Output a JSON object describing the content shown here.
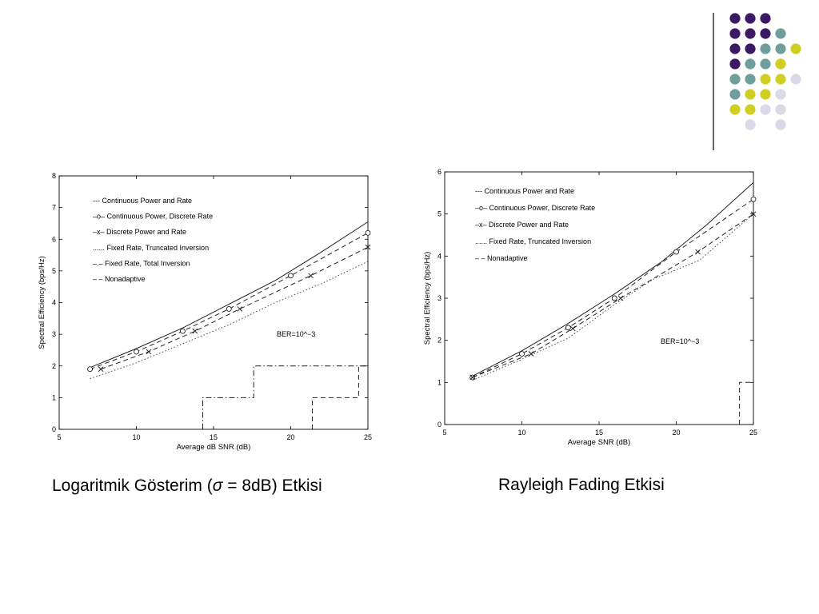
{
  "theme": {
    "dot_colors": {
      "purple": "#3b1a63",
      "teal": "#6f9e9c",
      "olive": "#cfce21",
      "lavender": "#d9d9e8"
    },
    "divider_color": "#333333",
    "dot_grid": [
      [
        "purple",
        "purple",
        "purple",
        ""
      ],
      [
        "purple",
        "purple",
        "purple",
        "teal"
      ],
      [
        "purple",
        "purple",
        "teal",
        "teal",
        "olive"
      ],
      [
        "purple",
        "teal",
        "teal",
        "olive"
      ],
      [
        "teal",
        "teal",
        "olive",
        "olive",
        "lavender"
      ],
      [
        "teal",
        "olive",
        "olive",
        "lavender"
      ],
      [
        "olive",
        "olive",
        "lavender",
        "lavender"
      ],
      [
        "",
        "lavender",
        "",
        "lavender"
      ]
    ]
  },
  "captions": {
    "left_prefix": "Logaritmik Gösterim (",
    "left_sigma": "σ",
    "left_suffix": " = 8dB) Etkisi",
    "right": "Rayleigh Fading Etkisi"
  },
  "chart_data": [
    {
      "type": "line",
      "xlabel": "Average dB SNR (dB)",
      "ylabel": "Spectral Efficiency (bps/Hz)",
      "xlim": [
        5,
        25
      ],
      "ylim": [
        0,
        8
      ],
      "xticks": [
        5,
        10,
        15,
        20,
        25
      ],
      "yticks": [
        0,
        1,
        2,
        3,
        4,
        5,
        6,
        7,
        8
      ],
      "grid": false,
      "legend_position": "top-left",
      "annotation": "BER=10^−3",
      "legend": [
        {
          "label": "Continuous Power and Rate",
          "symbol": "---"
        },
        {
          "label": "Continuous Power, Discrete Rate",
          "symbol": "–o–"
        },
        {
          "label": "Discrete Power and Rate",
          "symbol": "–x–"
        },
        {
          "label": "Fixed Rate, Truncated Inversion",
          "symbol": "......"
        },
        {
          "label": "Fixed Rate, Total Inversion",
          "symbol": "–.–"
        },
        {
          "label": "Nonadaptive",
          "symbol": "– –"
        }
      ],
      "series": [
        {
          "name": "Continuous Power and Rate",
          "style": "solid",
          "marker": "none",
          "x": [
            7,
            10,
            13,
            16,
            19,
            22,
            25
          ],
          "y": [
            1.95,
            2.55,
            3.2,
            3.95,
            4.7,
            5.6,
            6.55
          ]
        },
        {
          "name": "Continuous Power, Discrete Rate",
          "style": "dashed",
          "marker": "circle",
          "x": [
            7,
            10,
            13,
            16,
            20,
            25
          ],
          "y": [
            1.9,
            2.45,
            3.1,
            3.8,
            4.85,
            6.2
          ]
        },
        {
          "name": "Discrete Power and Rate",
          "style": "dashed",
          "marker": "x",
          "x": [
            7.7,
            10.8,
            13.8,
            16.7,
            21.3,
            25
          ],
          "y": [
            1.9,
            2.45,
            3.1,
            3.8,
            4.85,
            5.75
          ]
        },
        {
          "name": "Fixed Rate, Truncated Inversion",
          "style": "dotted",
          "marker": "none",
          "x": [
            7,
            10,
            13,
            16,
            19,
            22,
            25
          ],
          "y": [
            1.6,
            2.1,
            2.7,
            3.3,
            4.0,
            4.6,
            5.3
          ]
        },
        {
          "name": "Fixed Rate, Total Inversion",
          "style": "dashdot",
          "marker": "none",
          "x": [
            14.3,
            14.3,
            17.6,
            17.6,
            25
          ],
          "y": [
            0,
            1,
            1,
            2,
            2
          ]
        },
        {
          "name": "Nonadaptive",
          "style": "dashed",
          "marker": "none",
          "x": [
            21.4,
            21.4,
            24.4,
            24.4,
            25
          ],
          "y": [
            0,
            1,
            1,
            2,
            2
          ]
        }
      ]
    },
    {
      "type": "line",
      "xlabel": "Average SNR (dB)",
      "ylabel": "Spectral Efficiency (bps/Hz)",
      "xlim": [
        5,
        25
      ],
      "ylim": [
        0,
        6
      ],
      "xticks": [
        5,
        10,
        15,
        20,
        25
      ],
      "yticks": [
        0,
        1,
        2,
        3,
        4,
        5,
        6
      ],
      "grid": false,
      "legend_position": "top-left",
      "annotation": "BER=10^−3",
      "legend": [
        {
          "label": "Continuous Power and Rate",
          "symbol": "---"
        },
        {
          "label": "Continuous Power, Discrete Rate",
          "symbol": "–o–"
        },
        {
          "label": "Discrete Power and Rate",
          "symbol": "–x–"
        },
        {
          "label": "Fixed Rate, Truncated Inversion",
          "symbol": "......"
        },
        {
          "label": "Nonadaptive",
          "symbol": "– –"
        }
      ],
      "series": [
        {
          "name": "Continuous Power and Rate",
          "style": "solid",
          "marker": "none",
          "x": [
            6.8,
            10,
            13,
            16,
            19,
            22,
            25
          ],
          "y": [
            1.15,
            1.75,
            2.4,
            3.1,
            3.85,
            4.75,
            5.75
          ]
        },
        {
          "name": "Continuous Power, Discrete Rate",
          "style": "dashed",
          "marker": "circle",
          "x": [
            6.8,
            10,
            13,
            16,
            20,
            25
          ],
          "y": [
            1.12,
            1.68,
            2.3,
            3.0,
            4.1,
            5.35
          ]
        },
        {
          "name": "Discrete Power and Rate",
          "style": "dashed",
          "marker": "x",
          "x": [
            6.8,
            10.6,
            13.3,
            16.4,
            21.4,
            25
          ],
          "y": [
            1.12,
            1.68,
            2.28,
            3.0,
            4.1,
            5.0
          ]
        },
        {
          "name": "Fixed Rate, Truncated Inversion",
          "style": "dotted",
          "marker": "none",
          "x": [
            6.8,
            10,
            13,
            16,
            18.5,
            21.5,
            25
          ],
          "y": [
            1.05,
            1.55,
            2.05,
            2.85,
            3.45,
            3.9,
            5.0
          ]
        },
        {
          "name": "Nonadaptive",
          "style": "dashed",
          "marker": "none",
          "x": [
            24.1,
            24.1,
            25
          ],
          "y": [
            0,
            1,
            1
          ]
        }
      ]
    }
  ]
}
